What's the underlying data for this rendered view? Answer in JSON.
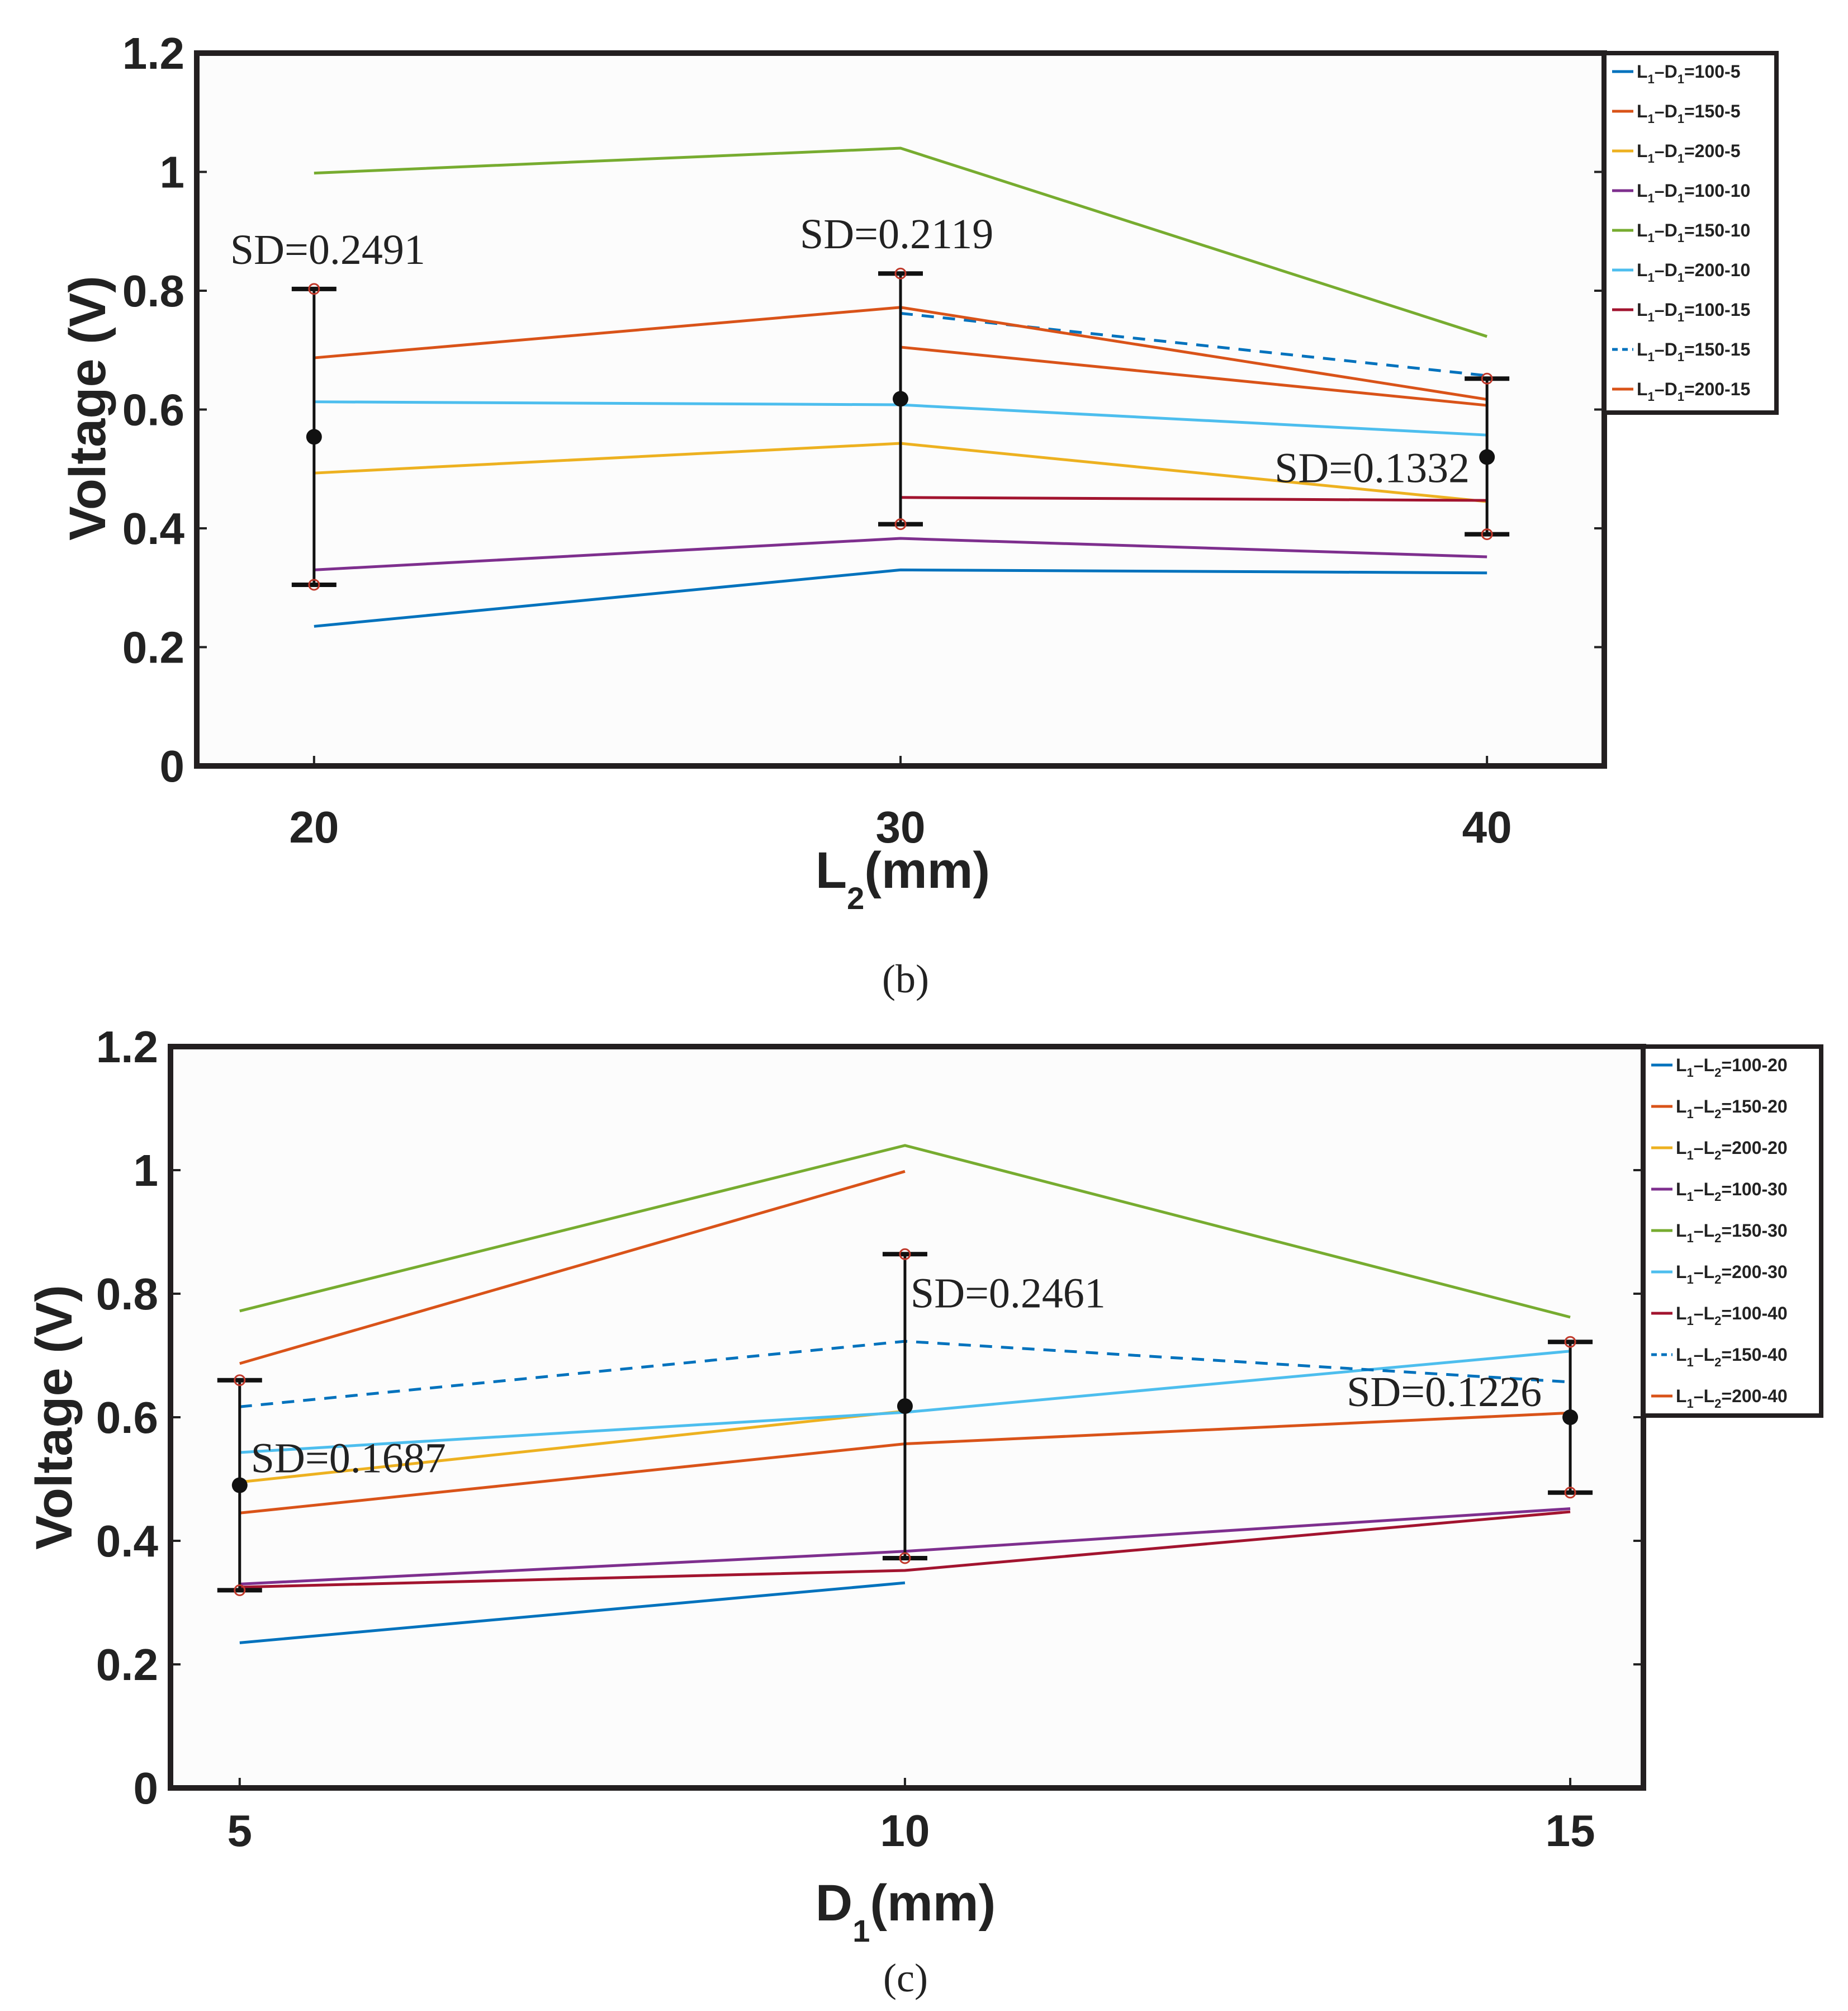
{
  "chart_data": [
    {
      "type": "line",
      "panel": "b",
      "caption": "(b)",
      "xlabel": "L",
      "xlabel_sub": "2",
      "xlabel_unit": "(mm)",
      "ylabel": "Voltage (V)",
      "ylim": [
        0,
        1.2
      ],
      "yticks": [
        "0",
        "0.2",
        "0.4",
        "0.6",
        "0.8",
        "1",
        "1.2"
      ],
      "x": [
        20,
        30,
        40
      ],
      "xticks": [
        "20",
        "30",
        "40"
      ],
      "xlim": [
        18,
        42
      ],
      "legend_prefix": "L1–D1=",
      "series": [
        {
          "name": "100-5",
          "color": "#0072BD",
          "dashed": false,
          "values": [
            0.235,
            0.33,
            0.325
          ]
        },
        {
          "name": "150-5",
          "color": "#D95319",
          "dashed": false,
          "values": [
            null,
            0.705,
            0.607
          ]
        },
        {
          "name": "200-5",
          "color": "#EDB120",
          "dashed": false,
          "values": [
            0.493,
            0.543,
            0.445
          ]
        },
        {
          "name": "100-10",
          "color": "#7E2F8E",
          "dashed": false,
          "values": [
            0.33,
            0.383,
            0.352
          ]
        },
        {
          "name": "150-10",
          "color": "#77AC30",
          "dashed": false,
          "values": [
            0.998,
            1.04,
            0.723
          ]
        },
        {
          "name": "200-10",
          "color": "#4DBEEE",
          "dashed": false,
          "values": [
            0.613,
            0.608,
            0.557
          ]
        },
        {
          "name": "100-15",
          "color": "#A2142F",
          "dashed": false,
          "values": [
            null,
            0.452,
            0.447
          ]
        },
        {
          "name": "150-15",
          "color": "#0072BD",
          "dashed": true,
          "values": [
            null,
            0.762,
            0.657
          ]
        },
        {
          "name": "200-15",
          "color": "#D95319",
          "dashed": false,
          "values": [
            0.687,
            0.772,
            0.617
          ]
        }
      ],
      "error_bars": [
        {
          "x": 20,
          "mean": 0.554,
          "low": 0.305,
          "high": 0.803,
          "label": "SD=0.2491"
        },
        {
          "x": 30,
          "mean": 0.618,
          "low": 0.407,
          "high": 0.829,
          "label": "SD=0.2119"
        },
        {
          "x": 40,
          "mean": 0.52,
          "low": 0.39,
          "high": 0.652,
          "label": "SD=0.1332"
        }
      ]
    },
    {
      "type": "line",
      "panel": "c",
      "caption": "(c)",
      "xlabel": "D",
      "xlabel_sub": "1",
      "xlabel_unit": "(mm)",
      "ylabel": "Voltage (V)",
      "ylim": [
        0,
        1.2
      ],
      "yticks": [
        "0",
        "0.2",
        "0.4",
        "0.6",
        "0.8",
        "1",
        "1.2"
      ],
      "x": [
        5,
        10,
        15
      ],
      "xticks": [
        "5",
        "10",
        "15"
      ],
      "xlim": [
        4.48,
        15.55
      ],
      "legend_prefix": "L1–L2=",
      "series": [
        {
          "name": "100-20",
          "color": "#0072BD",
          "dashed": false,
          "values": [
            0.235,
            0.332,
            null
          ]
        },
        {
          "name": "150-20",
          "color": "#D95319",
          "dashed": false,
          "values": [
            0.687,
            0.998,
            null
          ]
        },
        {
          "name": "200-20",
          "color": "#EDB120",
          "dashed": false,
          "values": [
            0.495,
            0.61,
            null
          ]
        },
        {
          "name": "100-30",
          "color": "#7E2F8E",
          "dashed": false,
          "values": [
            0.33,
            0.383,
            0.452
          ]
        },
        {
          "name": "150-30",
          "color": "#77AC30",
          "dashed": false,
          "values": [
            0.772,
            1.04,
            0.762
          ]
        },
        {
          "name": "200-30",
          "color": "#4DBEEE",
          "dashed": false,
          "values": [
            0.543,
            0.608,
            0.707
          ]
        },
        {
          "name": "100-40",
          "color": "#A2142F",
          "dashed": false,
          "values": [
            0.325,
            0.352,
            0.447
          ]
        },
        {
          "name": "150-40",
          "color": "#0072BD",
          "dashed": true,
          "values": [
            0.617,
            0.723,
            0.657
          ]
        },
        {
          "name": "200-40",
          "color": "#D95319",
          "dashed": false,
          "values": [
            0.445,
            0.557,
            0.607
          ]
        }
      ],
      "error_bars": [
        {
          "x": 5,
          "mean": 0.49,
          "low": 0.32,
          "high": 0.66,
          "label": "SD=0.1687"
        },
        {
          "x": 10,
          "mean": 0.618,
          "low": 0.372,
          "high": 0.864,
          "label": "SD=0.2461"
        },
        {
          "x": 15,
          "mean": 0.6,
          "low": 0.478,
          "high": 0.722,
          "label": "SD=0.1226"
        }
      ]
    }
  ]
}
